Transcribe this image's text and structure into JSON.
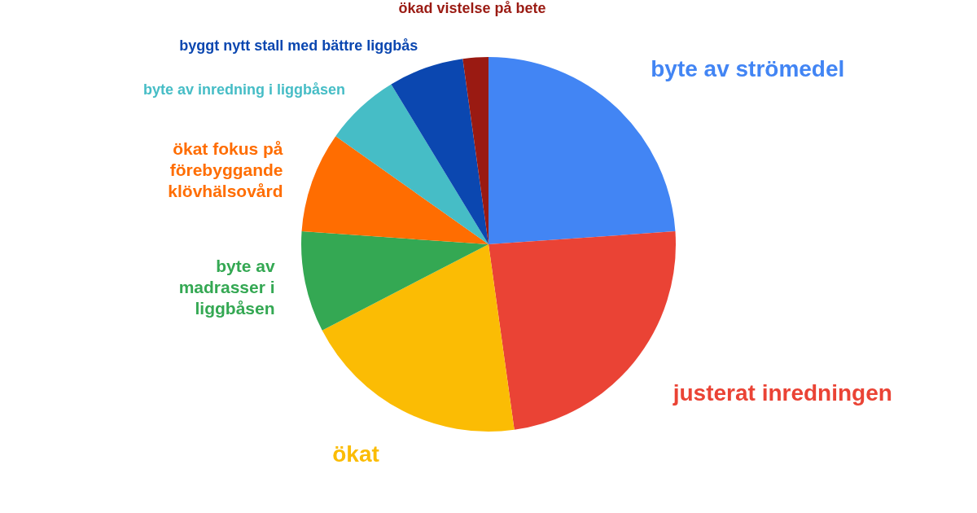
{
  "chart_data": {
    "type": "pie",
    "categories": [
      "byte av strömedel",
      "justerat inredningen",
      "ökat",
      "byte av madrasser i liggbåsen",
      "ökat fokus på förebyggande klövhälsovård",
      "byte av inredning i liggbåsen",
      "byggt nytt stall med bättre liggbås",
      "ökad vistelse på bete"
    ],
    "values": [
      23.9,
      23.9,
      19.6,
      8.7,
      8.7,
      6.5,
      6.5,
      2.2
    ],
    "colors": [
      "#4285f4",
      "#ea4335",
      "#fbbc04",
      "#34a853",
      "#ff6d01",
      "#46bdc6",
      "#0b47b0",
      "#9a1a12"
    ]
  }
}
